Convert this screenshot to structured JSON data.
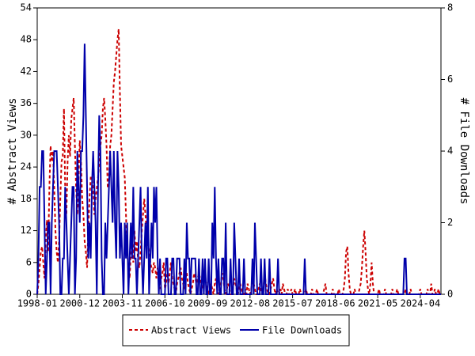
{
  "chart_data": {
    "type": "line",
    "y_label": "# Abstract Views",
    "y2_label": "# File Downloads",
    "categories": [
      "1998-01",
      null,
      null,
      null,
      null,
      null,
      null,
      null,
      null,
      null,
      null,
      null,
      null,
      null,
      null,
      null,
      null,
      null,
      null,
      null,
      null,
      null,
      null,
      null,
      null,
      null,
      null,
      null,
      null,
      null,
      null,
      null,
      null,
      null,
      null,
      "2000-12",
      null,
      null,
      null,
      null,
      null,
      null,
      null,
      null,
      null,
      null,
      null,
      null,
      null,
      null,
      null,
      null,
      null,
      null,
      null,
      null,
      null,
      null,
      null,
      null,
      null,
      null,
      null,
      null,
      null,
      null,
      null,
      null,
      null,
      null,
      "2003-11",
      null,
      null,
      null,
      null,
      null,
      null,
      null,
      null,
      null,
      null,
      null,
      null,
      null,
      null,
      null,
      null,
      null,
      null,
      null,
      null,
      null,
      null,
      null,
      null,
      null,
      null,
      null,
      null,
      null,
      null,
      null,
      null,
      null,
      null,
      "2006-10",
      null,
      null,
      null,
      null,
      null,
      null,
      null,
      null,
      null,
      null,
      null,
      null,
      null,
      null,
      null,
      null,
      null,
      null,
      null,
      null,
      null,
      null,
      null,
      null,
      null,
      null,
      null,
      null,
      null,
      null,
      null,
      null,
      null,
      null,
      "2009-09",
      null,
      null,
      null,
      null,
      null,
      null,
      null,
      null,
      null,
      null,
      null,
      null,
      null,
      null,
      null,
      null,
      null,
      null,
      null,
      null,
      null,
      null,
      null,
      null,
      null,
      null,
      null,
      null,
      null,
      null,
      null,
      null,
      null,
      null,
      "2012-08",
      null,
      null,
      null,
      null,
      null,
      null,
      null,
      null,
      null,
      null,
      null,
      null,
      null,
      null,
      null,
      null,
      null,
      null,
      null,
      null,
      null,
      null,
      null,
      null,
      null,
      null,
      null,
      null,
      null,
      null,
      null,
      null,
      null,
      null,
      "2015-07",
      null,
      null,
      null,
      null,
      null,
      null,
      null,
      null,
      null,
      null,
      null,
      null,
      null,
      null,
      null,
      null,
      null,
      null,
      null,
      null,
      null,
      null,
      null,
      null,
      null,
      null,
      null,
      null,
      null,
      null,
      null,
      null,
      null,
      null,
      "2018-06",
      null,
      null,
      null,
      null,
      null,
      null,
      null,
      null,
      null,
      null,
      null,
      null,
      null,
      null,
      null,
      null,
      null,
      null,
      null,
      null,
      null,
      null,
      null,
      null,
      null,
      null,
      null,
      null,
      null,
      null,
      null,
      null,
      null,
      null,
      "2021-05",
      null,
      null,
      null,
      null,
      null,
      null,
      null,
      null,
      null,
      null,
      null,
      null,
      null,
      null,
      null,
      null,
      null,
      null,
      null,
      null,
      null,
      null,
      null,
      null,
      null,
      null,
      null,
      null,
      null,
      null,
      null,
      null,
      null,
      null,
      "2024-04",
      null,
      null,
      null,
      null,
      null,
      null,
      null,
      null,
      null,
      null,
      null,
      null,
      null,
      null,
      null,
      null,
      null
    ],
    "series": [
      {
        "name": "Abstract Views",
        "color": "#cc0000",
        "dash": true,
        "values": [
          0,
          2,
          5,
          8,
          9,
          6,
          3,
          10,
          14,
          8,
          20,
          28,
          25,
          27,
          20,
          12,
          8,
          6,
          10,
          18,
          25,
          26,
          35,
          20,
          15,
          25,
          30,
          26,
          33,
          35,
          37,
          28,
          20,
          15,
          22,
          29,
          25,
          18,
          15,
          10,
          8,
          5,
          12,
          18,
          22,
          22,
          20,
          15,
          18,
          20,
          22,
          25,
          28,
          30,
          35,
          37,
          33,
          28,
          20,
          22,
          28,
          30,
          35,
          40,
          42,
          45,
          48,
          50,
          38,
          28,
          26,
          24,
          22,
          15,
          8,
          5,
          3,
          8,
          10,
          6,
          12,
          8,
          10,
          6,
          5,
          8,
          12,
          15,
          18,
          15,
          12,
          10,
          8,
          6,
          5,
          4,
          6,
          5,
          3,
          5,
          2,
          1,
          3,
          4,
          6,
          1,
          2,
          4,
          2,
          4,
          6,
          3,
          2,
          1,
          0,
          2,
          3,
          4,
          5,
          3,
          2,
          1,
          3,
          4,
          2,
          1,
          0,
          1,
          2,
          4,
          3,
          2,
          3,
          4,
          3,
          2,
          1,
          2,
          3,
          2,
          1,
          0,
          1,
          2,
          1,
          0,
          2,
          3,
          1,
          0,
          1,
          2,
          4,
          3,
          1,
          0,
          1,
          2,
          1,
          0,
          0,
          1,
          3,
          2,
          1,
          0,
          1,
          2,
          1,
          0,
          0,
          1,
          0,
          2,
          1,
          0,
          1,
          3,
          2,
          1,
          0,
          0,
          1,
          2,
          1,
          0,
          1,
          4,
          2,
          1,
          0,
          0,
          1,
          2,
          3,
          1,
          0,
          1,
          0,
          0,
          1,
          0,
          2,
          1,
          0,
          0,
          1,
          0,
          0,
          1,
          0,
          0,
          1,
          0,
          0,
          0,
          1,
          0,
          0,
          0,
          0,
          1,
          0,
          0,
          0,
          0,
          1,
          0,
          0,
          0,
          1,
          0,
          0,
          0,
          0,
          0,
          1,
          2,
          0,
          0,
          0,
          0,
          0,
          1,
          0,
          0,
          0,
          0,
          1,
          0,
          0,
          0,
          1,
          3,
          8,
          9,
          4,
          1,
          0,
          0,
          0,
          1,
          0,
          0,
          0,
          1,
          2,
          5,
          9,
          12,
          8,
          3,
          1,
          0,
          2,
          6,
          2,
          0,
          0,
          0,
          0,
          1,
          0,
          0,
          0,
          0,
          1,
          0,
          0,
          0,
          0,
          0,
          1,
          0,
          0,
          0,
          1,
          0,
          0,
          0,
          0,
          0,
          0,
          1,
          0,
          0,
          0,
          1,
          0,
          0,
          0,
          0,
          0,
          0,
          0,
          1,
          0,
          0,
          0,
          0,
          0,
          1,
          0,
          0,
          2,
          0,
          0,
          1,
          0,
          0,
          1,
          0,
          0
        ]
      },
      {
        "name": "File Downloads",
        "color": "#0000aa",
        "axis": "y2",
        "values": [
          0,
          1,
          3,
          3,
          4,
          4,
          2,
          0,
          1,
          2,
          2,
          0,
          2,
          3,
          4,
          4,
          4,
          3,
          2,
          0,
          0,
          1,
          1,
          3,
          2,
          1,
          0,
          1,
          2,
          3,
          3,
          0,
          1,
          4,
          3,
          2,
          4,
          4,
          5,
          7,
          5,
          3,
          1,
          2,
          1,
          3,
          4,
          3,
          2,
          0,
          3,
          5,
          4,
          1,
          0,
          0,
          2,
          1,
          2,
          3,
          4,
          3,
          2,
          4,
          2,
          1,
          4,
          3,
          1,
          2,
          1,
          0,
          2,
          1,
          2,
          0,
          1,
          2,
          1,
          3,
          1,
          1,
          0,
          1,
          2,
          3,
          1,
          0,
          1,
          2,
          1,
          3,
          0,
          1,
          2,
          1,
          3,
          2,
          3,
          1,
          0,
          1,
          0,
          0,
          0,
          0,
          1,
          1,
          0,
          0,
          0,
          1,
          1,
          0,
          0,
          1,
          1,
          1,
          0,
          0,
          0,
          1,
          0,
          2,
          1,
          1,
          0,
          1,
          1,
          1,
          1,
          0,
          0,
          1,
          0,
          0,
          1,
          0,
          1,
          0,
          0,
          1,
          0,
          0,
          2,
          1,
          3,
          1,
          0,
          1,
          0,
          0,
          1,
          1,
          0,
          2,
          0,
          0,
          0,
          1,
          0,
          0,
          2,
          1,
          0,
          0,
          1,
          0,
          0,
          0,
          1,
          0,
          0,
          0,
          0,
          0,
          0,
          1,
          0,
          2,
          1,
          0,
          0,
          0,
          1,
          0,
          0,
          1,
          0,
          0,
          0,
          1,
          0,
          0,
          0,
          0,
          0,
          0,
          1,
          0,
          0,
          0,
          0,
          0,
          0,
          0,
          0,
          0,
          0,
          0,
          0,
          0,
          0,
          0,
          0,
          0,
          0,
          0,
          0,
          0,
          1,
          0,
          0,
          0,
          0,
          0,
          0,
          0,
          0,
          0,
          0,
          0,
          0,
          0,
          0,
          0,
          0,
          0,
          0,
          0,
          0,
          0,
          0,
          0,
          0,
          0,
          0,
          0,
          0,
          0,
          0,
          0,
          0,
          0,
          0,
          0,
          0,
          0,
          0,
          0,
          0,
          0,
          0,
          0,
          0,
          0,
          0,
          0,
          0,
          0,
          0,
          0,
          0,
          0,
          0,
          0,
          0,
          0,
          0,
          0,
          0,
          0,
          0,
          0,
          0,
          0,
          0,
          0,
          0,
          0,
          0,
          0,
          0,
          0,
          0,
          0,
          0,
          0,
          0,
          0,
          0,
          0,
          1,
          1,
          0,
          0,
          0,
          0,
          0,
          0,
          0,
          0,
          0,
          0,
          0,
          0,
          0,
          0,
          0,
          0,
          0,
          0,
          0,
          0,
          0,
          0,
          0,
          0,
          0,
          0,
          0,
          0,
          0
        ]
      }
    ],
    "ylim": [
      0,
      54
    ],
    "yticks": [
      0,
      6,
      12,
      18,
      24,
      30,
      36,
      42,
      48,
      54
    ],
    "y2lim": [
      0,
      8
    ],
    "y2ticks": [
      0,
      2,
      4,
      6,
      8
    ],
    "legend": "bottom"
  }
}
